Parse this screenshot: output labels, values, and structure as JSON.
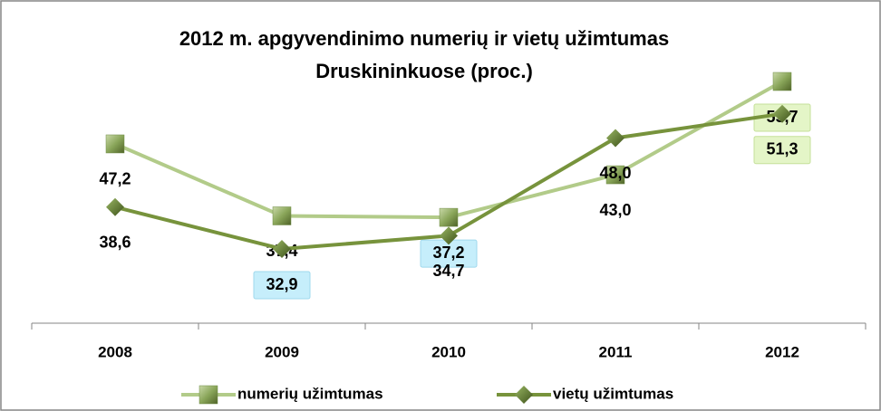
{
  "chart_data": {
    "type": "line",
    "title": [
      "2012 m. apgyvendinimo numerių ir vietų užimtumas",
      "Druskininkuose (proc.)"
    ],
    "categories": [
      "2008",
      "2009",
      "2010",
      "2011",
      "2012"
    ],
    "series": [
      {
        "name": "numerių užimtumas",
        "color": "#b2cb89",
        "marker": "square",
        "values": [
          47.2,
          37.4,
          37.2,
          43.0,
          55.7
        ],
        "value_labels": [
          "47,2",
          "37,4",
          "37,2",
          "43,0",
          "55,7"
        ]
      },
      {
        "name": "vietų užimtumas",
        "color": "#77933c",
        "marker": "diamond",
        "values": [
          38.6,
          32.9,
          34.7,
          48.0,
          51.3
        ],
        "value_labels": [
          "38,6",
          "32,9",
          "34,7",
          "48,0",
          "51,3"
        ]
      }
    ],
    "legend": "bottom"
  }
}
